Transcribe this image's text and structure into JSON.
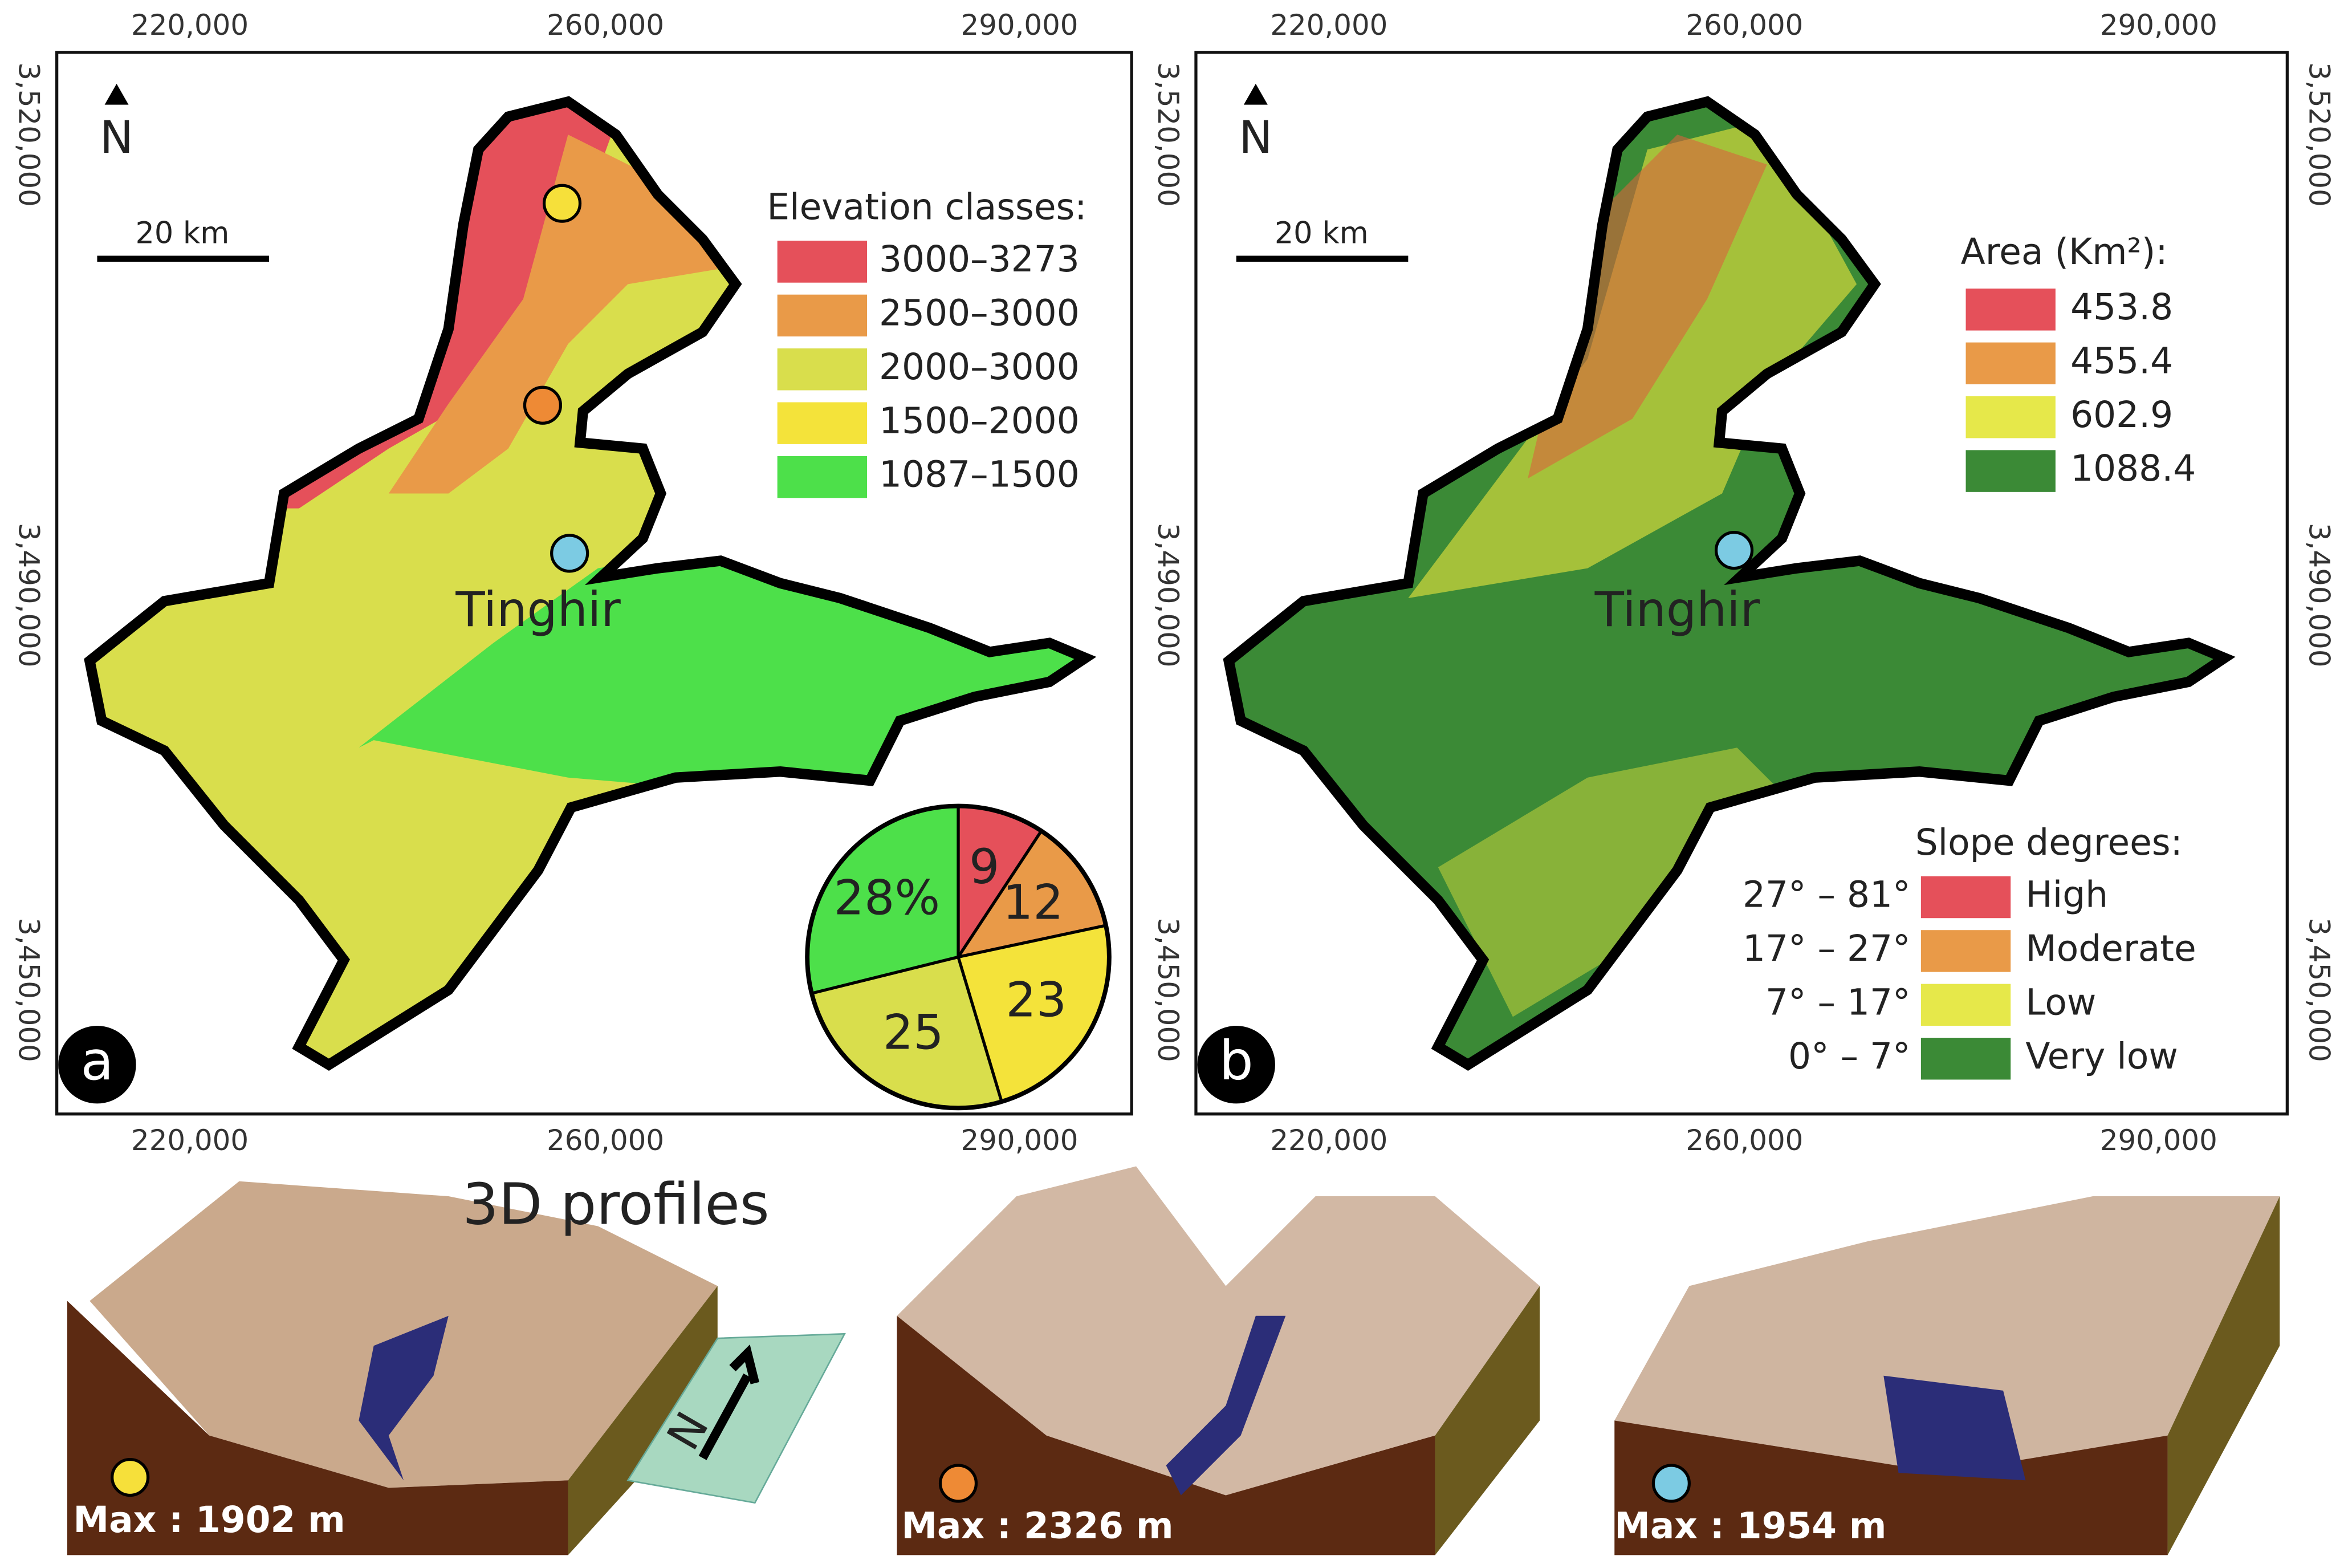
{
  "maps": [
    {
      "panel_label": "a",
      "north": "N",
      "scale": "20 km",
      "place": "Tinghir",
      "x_labels": [
        "220,000",
        "260,000",
        "290,000"
      ],
      "y_labels": [
        "3,520,000",
        "3,490,000",
        "3,450,000"
      ],
      "legend_title": "Elevation classes:",
      "legend": [
        {
          "label": "3000–3273",
          "color": "#e5505a"
        },
        {
          "label": "2500–3000",
          "color": "#e99a48"
        },
        {
          "label": "2000–3000",
          "color": "#d9de4c"
        },
        {
          "label": "1500–2000",
          "color": "#f4e33a"
        },
        {
          "label": "1087–1500",
          "color": "#4de04a"
        }
      ]
    },
    {
      "panel_label": "b",
      "north": "N",
      "scale": "20 km",
      "place": "Tinghir",
      "x_labels": [
        "220,000",
        "260,000",
        "290,000"
      ],
      "y_labels": [
        "3,520,000",
        "3,490,000",
        "3,450,000"
      ],
      "legend_title": "Area (Km²):",
      "legend": [
        {
          "label": 453.8,
          "color": "#e5505a"
        },
        {
          "label": 455.4,
          "color": "#e99a48"
        },
        {
          "label": 602.9,
          "color": "#e6e84a"
        },
        {
          "label": 1088.4,
          "color": "#3b8a36"
        }
      ],
      "slope_title": "Slope degrees:",
      "slope_legend": [
        {
          "range": "27° – 81°",
          "label": "High",
          "color": "#e5505a"
        },
        {
          "range": "17° – 27°",
          "label": "Moderate",
          "color": "#e99a48"
        },
        {
          "range": "7° – 17°",
          "label": "Low",
          "color": "#e6e84a"
        },
        {
          "range": "0° – 7°",
          "label": "Very low",
          "color": "#3b8a36"
        }
      ]
    }
  ],
  "chart_data": {
    "type": "pie",
    "values": [
      9,
      12,
      23,
      25,
      28
    ],
    "value_labels": [
      "9",
      "12",
      "23",
      "25",
      "28%"
    ],
    "colors": [
      "#e5505a",
      "#e99a48",
      "#f4e33a",
      "#d9de4c",
      "#4de04a"
    ]
  },
  "profiles": {
    "title": "3D profiles",
    "north": "N",
    "items": [
      {
        "label": "Max : 1902 m",
        "color": "#f6e03a"
      },
      {
        "label": "Max : 2326 m",
        "color": "#ee8a35"
      },
      {
        "label": "Max : 1954 m",
        "color": "#7ccbe3"
      }
    ]
  }
}
